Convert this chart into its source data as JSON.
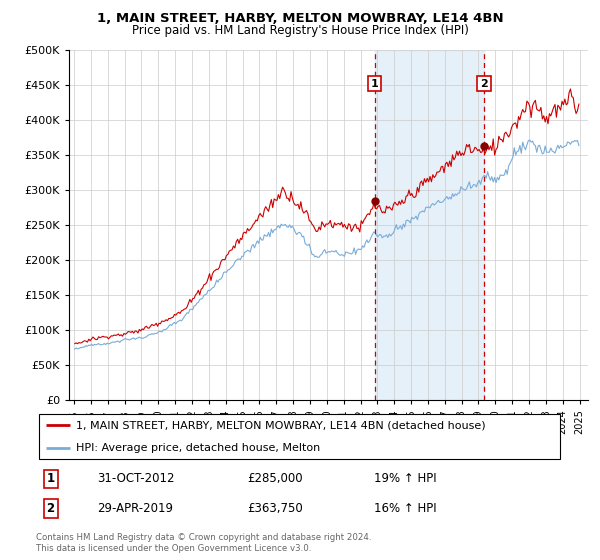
{
  "title1": "1, MAIN STREET, HARBY, MELTON MOWBRAY, LE14 4BN",
  "title2": "Price paid vs. HM Land Registry's House Price Index (HPI)",
  "legend_line1": "1, MAIN STREET, HARBY, MELTON MOWBRAY, LE14 4BN (detached house)",
  "legend_line2": "HPI: Average price, detached house, Melton",
  "transaction1_date": "31-OCT-2012",
  "transaction1_price": "£285,000",
  "transaction1_hpi": "19% ↑ HPI",
  "transaction2_date": "29-APR-2019",
  "transaction2_price": "£363,750",
  "transaction2_hpi": "16% ↑ HPI",
  "footer": "Contains HM Land Registry data © Crown copyright and database right 2024.\nThis data is licensed under the Open Government Licence v3.0.",
  "red_color": "#cc0000",
  "blue_color": "#7aacda",
  "background_fill": "#daeaf6",
  "marker1_x": 2012.83,
  "marker2_x": 2019.33,
  "ylim_top": 500000,
  "ylim_bottom": 0,
  "xmin": 1994.7,
  "xmax": 2025.5
}
